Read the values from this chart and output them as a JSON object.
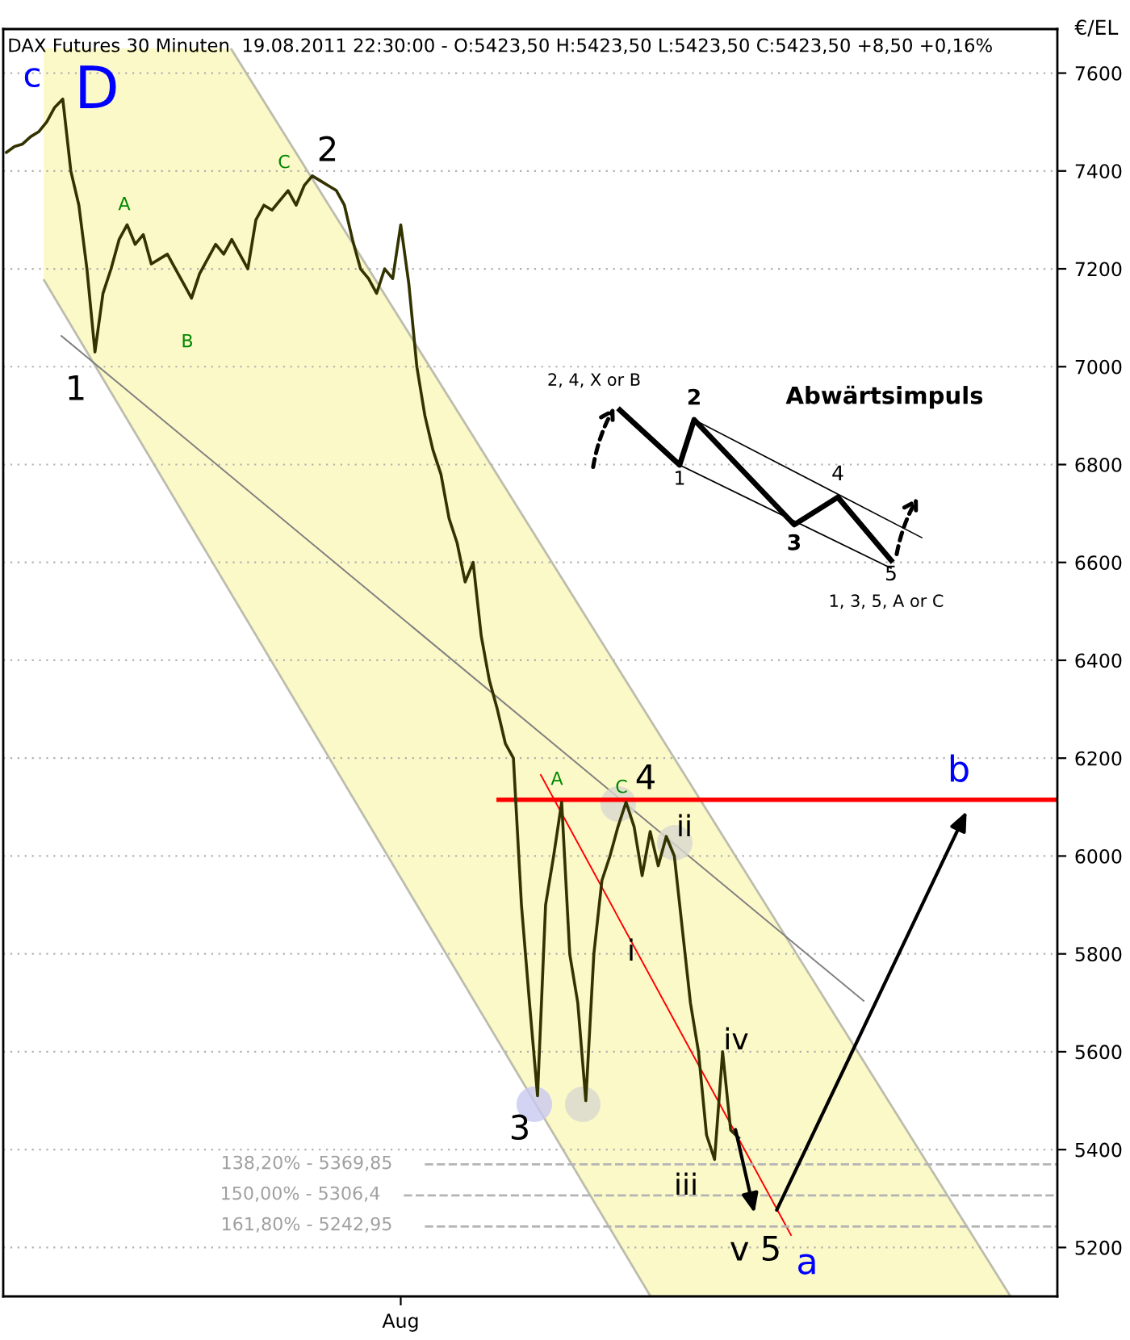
{
  "chart_data": {
    "type": "line",
    "title": "DAX Futures 30 Minuten  19.08.2011 22:30:00 - O:5423,50 H:5423,50 L:5423,50 C:5423,50 +8,50 +0,16%",
    "ylabel": "€/EL",
    "categories": [
      null,
      null,
      null,
      null,
      null,
      null,
      null,
      null,
      null,
      null,
      null,
      null,
      null,
      null,
      null,
      null,
      null,
      null,
      null,
      null,
      null,
      null,
      null,
      null,
      null,
      null,
      null,
      null,
      null,
      null,
      null,
      null,
      null,
      null,
      null,
      null,
      null,
      null,
      null,
      null,
      null,
      null,
      null,
      null,
      null,
      null,
      null,
      null,
      null,
      "Aug",
      null,
      null,
      null,
      null,
      null,
      null,
      null,
      null,
      null,
      null,
      null,
      null,
      null,
      null,
      null,
      null,
      null,
      null,
      null,
      null,
      null,
      null,
      null,
      null,
      null,
      null,
      null,
      null,
      null,
      null,
      null,
      null,
      null,
      null,
      null,
      null,
      null,
      null,
      null,
      null,
      null,
      null,
      null,
      null,
      null,
      null,
      null,
      null,
      null,
      null,
      null,
      null,
      null,
      null,
      null,
      null,
      null,
      null,
      null,
      null,
      null,
      null,
      null,
      null,
      null,
      null,
      null,
      null,
      null,
      null,
      null,
      null,
      null,
      null,
      null,
      null,
      null,
      null,
      null,
      null,
      null
    ],
    "series": [
      {
        "color": "#333300",
        "values": [
          7438,
          7450,
          7455,
          7470,
          7480,
          7500,
          7530,
          7547,
          7400,
          7330,
          7200,
          7030,
          7150,
          7200,
          7260,
          7290,
          7250,
          7270,
          7210,
          7220,
          7230,
          7200,
          7170,
          7140,
          7190,
          7220,
          7250,
          7230,
          7260,
          7230,
          7200,
          7300,
          7330,
          7320,
          7340,
          7360,
          7330,
          7370,
          7390,
          7380,
          7370,
          7360,
          7330,
          7260,
          7200,
          7180,
          7150,
          7200,
          7180,
          7290,
          7170,
          7000,
          6900,
          6830,
          6780,
          6690,
          6640,
          6560,
          6600,
          6450,
          6360,
          6300,
          6230,
          6200,
          5900,
          5700,
          5510,
          5900,
          6000,
          6110,
          5800,
          5700,
          5500,
          5800,
          5950,
          6000,
          6060,
          6110,
          6060,
          5960,
          6050,
          5980,
          6040,
          6000,
          5850,
          5700,
          5600,
          5430,
          5380,
          5600,
          5440,
          5424,
          null,
          null,
          null,
          null,
          null,
          null,
          null,
          null,
          null,
          null,
          null,
          null,
          null,
          null,
          null,
          null,
          null,
          null,
          null,
          null,
          null,
          null,
          null,
          null,
          null,
          null,
          null,
          null,
          null,
          null,
          null,
          null,
          null,
          null,
          null,
          null,
          null,
          null,
          null
        ]
      }
    ],
    "ylim": [
      5100,
      7690
    ],
    "yticks": [
      5200,
      5400,
      5600,
      5800,
      6000,
      6200,
      6400,
      6600,
      6800,
      7000,
      7200,
      7400,
      7600
    ],
    "grid": "y",
    "tick_labels": "xy",
    "ref_lines": [
      {
        "axis": "y",
        "value": 6115,
        "label": null,
        "color": "#ff0000",
        "line_style": "solid"
      },
      {
        "axis": "y",
        "value": 5369.85,
        "label": null,
        "color": "#b4b4b4",
        "line_style": "dashed"
      },
      {
        "axis": "y",
        "value": 5306.4,
        "label": null,
        "color": "#b4b4b4",
        "line_style": "dashed"
      },
      {
        "axis": "y",
        "value": 5242.95,
        "label": null,
        "color": "#b4b4b4",
        "line_style": "dashed"
      }
    ],
    "annotations": [
      "c",
      "D",
      "1",
      "A",
      "B",
      "C",
      "2",
      "3",
      "A",
      "C",
      "4",
      "i",
      "ii",
      "iii",
      "iv",
      "v 5",
      "a",
      "b",
      "2, 4, X or B",
      "Abwärtsimpuls",
      "1",
      "2",
      "3",
      "4",
      "5",
      "1, 3, 5, A or C",
      "138,20% - 5369,85",
      "150,00% - 5306,4",
      "161,80% - 5242,95"
    ]
  }
}
